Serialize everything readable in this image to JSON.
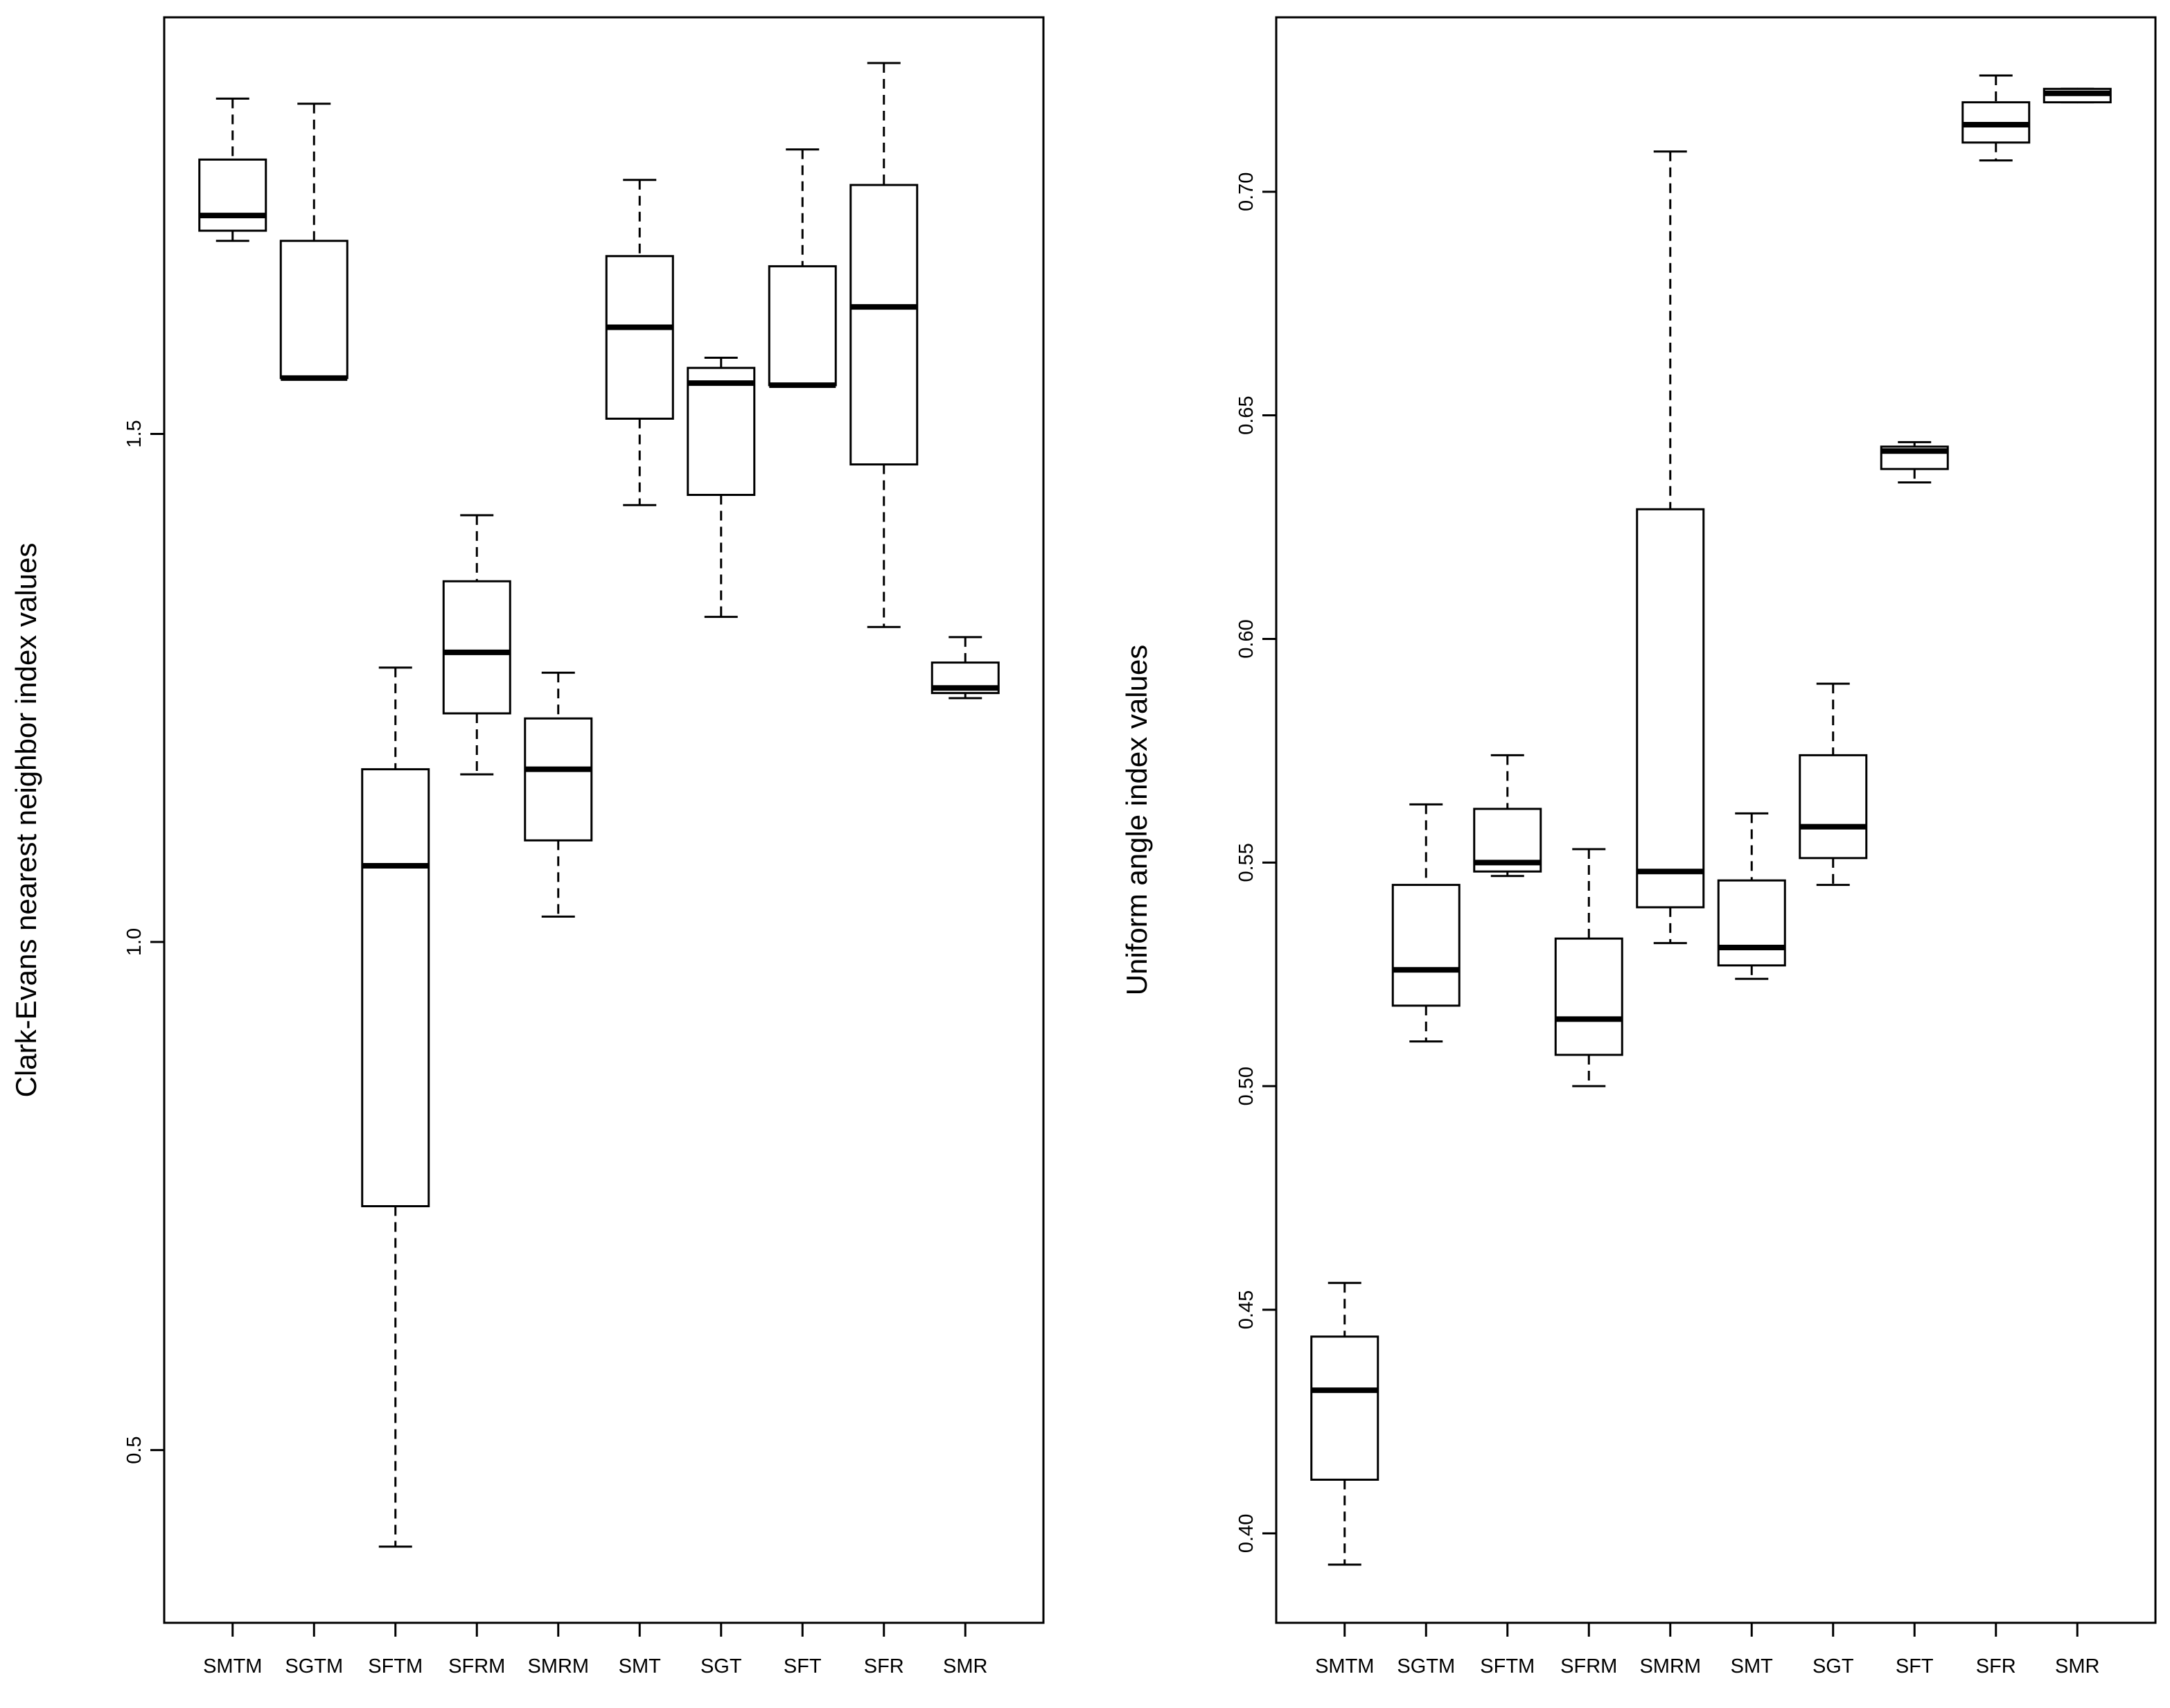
{
  "chart_data": [
    {
      "type": "boxplot",
      "ylabel": "Clark-Evans nearest neighbor index values",
      "xlabel": "",
      "ylim": [
        0.33,
        1.91
      ],
      "yticks": [
        0.5,
        1.0,
        1.5
      ],
      "ytick_labels": [
        "0.5",
        "1.0",
        "1.5"
      ],
      "categories": [
        "SMTM",
        "SGTM",
        "SFTM",
        "SFRM",
        "SMRM",
        "SMT",
        "SGT",
        "SFT",
        "SFR",
        "SMR"
      ],
      "boxes": [
        {
          "min": 1.69,
          "q1": 1.7,
          "median": 1.715,
          "q3": 1.77,
          "max": 1.83
        },
        {
          "min": 1.555,
          "q1": 1.555,
          "median": 1.555,
          "q3": 1.69,
          "max": 1.825
        },
        {
          "min": 0.405,
          "q1": 0.74,
          "median": 1.075,
          "q3": 1.17,
          "max": 1.27
        },
        {
          "min": 1.165,
          "q1": 1.225,
          "median": 1.285,
          "q3": 1.355,
          "max": 1.42
        },
        {
          "min": 1.025,
          "q1": 1.1,
          "median": 1.17,
          "q3": 1.22,
          "max": 1.265
        },
        {
          "min": 1.43,
          "q1": 1.515,
          "median": 1.605,
          "q3": 1.675,
          "max": 1.75
        },
        {
          "min": 1.32,
          "q1": 1.44,
          "median": 1.55,
          "q3": 1.565,
          "max": 1.575
        },
        {
          "min": 1.548,
          "q1": 1.548,
          "median": 1.548,
          "q3": 1.665,
          "max": 1.78
        },
        {
          "min": 1.31,
          "q1": 1.47,
          "median": 1.625,
          "q3": 1.745,
          "max": 1.865
        },
        {
          "min": 1.24,
          "q1": 1.245,
          "median": 1.25,
          "q3": 1.275,
          "max": 1.3
        }
      ]
    },
    {
      "type": "boxplot",
      "ylabel": "Uniform angle index values",
      "xlabel": "",
      "ylim": [
        0.38,
        0.739
      ],
      "yticks": [
        0.4,
        0.45,
        0.5,
        0.55,
        0.6,
        0.65,
        0.7
      ],
      "ytick_labels": [
        "0.40",
        "0.45",
        "0.50",
        "0.55",
        "0.60",
        "0.65",
        "0.70"
      ],
      "categories": [
        "SMTM",
        "SGTM",
        "SFTM",
        "SFRM",
        "SMRM",
        "SMT",
        "SGT",
        "SFT",
        "SFR",
        "SMR"
      ],
      "boxes": [
        {
          "min": 0.393,
          "q1": 0.412,
          "median": 0.432,
          "q3": 0.444,
          "max": 0.456
        },
        {
          "min": 0.51,
          "q1": 0.518,
          "median": 0.526,
          "q3": 0.545,
          "max": 0.563
        },
        {
          "min": 0.547,
          "q1": 0.548,
          "median": 0.55,
          "q3": 0.562,
          "max": 0.574
        },
        {
          "min": 0.5,
          "q1": 0.507,
          "median": 0.515,
          "q3": 0.533,
          "max": 0.553
        },
        {
          "min": 0.532,
          "q1": 0.54,
          "median": 0.548,
          "q3": 0.629,
          "max": 0.709
        },
        {
          "min": 0.524,
          "q1": 0.527,
          "median": 0.531,
          "q3": 0.546,
          "max": 0.561
        },
        {
          "min": 0.545,
          "q1": 0.551,
          "median": 0.558,
          "q3": 0.574,
          "max": 0.59
        },
        {
          "min": 0.635,
          "q1": 0.638,
          "median": 0.642,
          "q3": 0.643,
          "max": 0.644
        },
        {
          "min": 0.707,
          "q1": 0.711,
          "median": 0.715,
          "q3": 0.72,
          "max": 0.726
        },
        {
          "min": 0.72,
          "q1": 0.72,
          "median": 0.722,
          "q3": 0.723,
          "max": 0.723
        }
      ]
    }
  ]
}
